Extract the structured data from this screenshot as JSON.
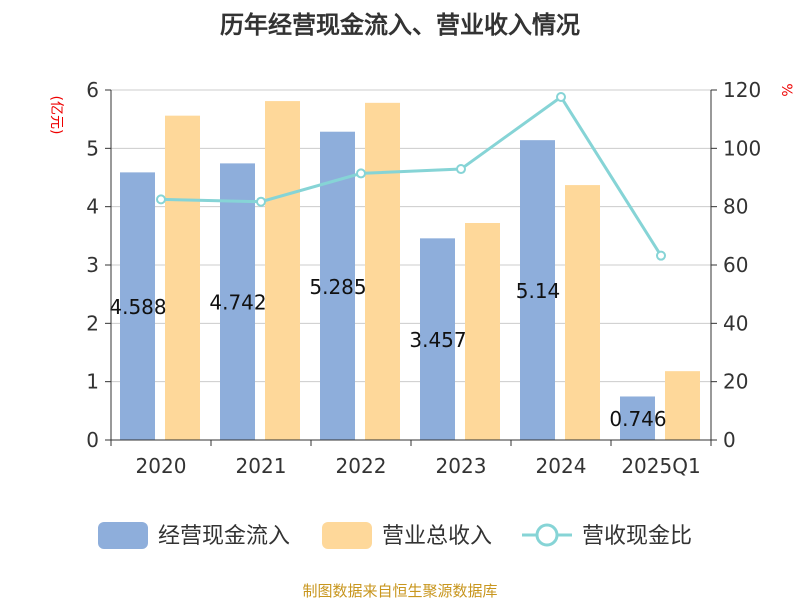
{
  "chart_data": {
    "type": "bar",
    "title": "历年经营现金流入、营业收入情况",
    "ylabel_left": "(亿元)",
    "ylabel_right": "%",
    "categories": [
      "2020",
      "2021",
      "2022",
      "2023",
      "2024",
      "2025Q1"
    ],
    "ylim_left": [
      0,
      6
    ],
    "ylim_right": [
      0,
      120
    ],
    "yticks_left": [
      "0",
      "1",
      "2",
      "3",
      "4",
      "5",
      "6"
    ],
    "yticks_right": [
      "0",
      "20",
      "40",
      "60",
      "80",
      "100",
      "120"
    ],
    "grid": true,
    "series": [
      {
        "name": "经营现金流入",
        "type": "bar",
        "axis": "left",
        "color": "#8eaedb",
        "values": [
          4.588,
          4.742,
          5.285,
          3.457,
          5.14,
          0.746
        ],
        "labels": [
          "4.588",
          "4.742",
          "5.285",
          "3.457",
          "5.14",
          "0.746"
        ]
      },
      {
        "name": "营业总收入",
        "type": "bar",
        "axis": "left",
        "color": "#fed89a",
        "values": [
          5.56,
          5.81,
          5.78,
          3.72,
          4.37,
          1.18
        ]
      },
      {
        "name": "营收现金比",
        "type": "line",
        "axis": "right",
        "color": "#86d4d6",
        "values": [
          82.5,
          81.7,
          91.4,
          92.9,
          117.6,
          63.2
        ]
      }
    ],
    "legend_position": "bottom"
  },
  "footer": "制图数据来自恒生聚源数据库"
}
